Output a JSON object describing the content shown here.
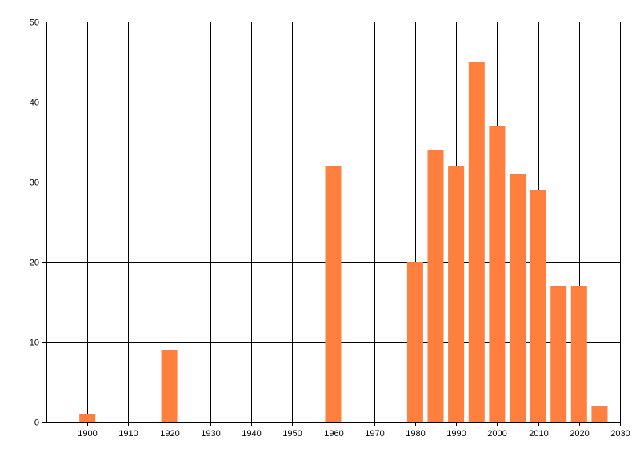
{
  "chart_data": {
    "type": "bar",
    "title": "",
    "xlabel": "",
    "ylabel": "",
    "x": [
      1900,
      1920,
      1960,
      1980,
      1985,
      1990,
      1995,
      2000,
      2005,
      2010,
      2015,
      2020,
      2025
    ],
    "values": [
      1,
      9,
      32,
      20,
      34,
      32,
      45,
      37,
      31,
      29,
      17,
      17,
      2
    ],
    "xlim": [
      1890,
      2030
    ],
    "ylim": [
      0,
      50
    ],
    "x_ticks": [
      "1900",
      "1910",
      "1920",
      "1930",
      "1940",
      "1950",
      "1960",
      "1970",
      "1980",
      "1990",
      "2000",
      "2010",
      "2020",
      "2030"
    ],
    "y_ticks": [
      "0",
      "10",
      "20",
      "30",
      "40",
      "50"
    ],
    "grid": true,
    "legend": "none",
    "bar_color": "#ff7f3f"
  }
}
